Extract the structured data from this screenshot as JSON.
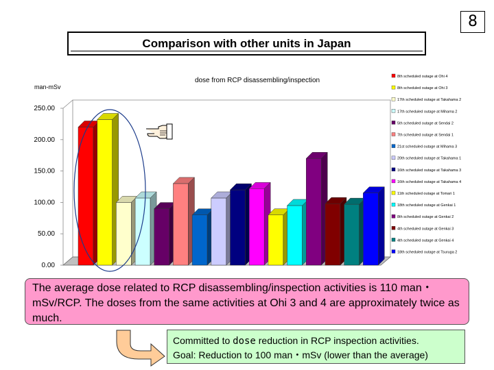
{
  "page_number": "8",
  "slide_title": "Comparison with other units in Japan",
  "callout": {
    "text": "The average dose related to RCP disassembling/inspection activities is 110 man・mSv/RCP. The doses from the same activities at Ohi 3 and 4 are approximately twice as much."
  },
  "goal_box": {
    "line1_pre": "Committed to ",
    "line1_word": "dose",
    "line1_post": " reduction in RCP inspection activities.",
    "line2": "Goal: Reduction to 100 man・mSv (lower than the average)"
  },
  "pointer_icon": "pointing-hand-icon",
  "colors": {
    "callout_bg": "#ff99cc",
    "goal_bg": "#ccffcc",
    "highlight_ellipse": "#1a3a8a"
  },
  "chart_data": {
    "type": "bar",
    "title": "dose from RCP disassembling/inspection",
    "ylabel": "man-mSv",
    "ylim": [
      0,
      250
    ],
    "yticks": [
      "0.00",
      "50.00",
      "100.00",
      "150.00",
      "200.00",
      "250.00"
    ],
    "grid": false,
    "legend_position": "right",
    "series": [
      {
        "name": "8th scheduled outage at Ohi 4",
        "value": 220,
        "color": "#ff0000"
      },
      {
        "name": "8th scheduled outage at Ohi 3",
        "value": 232,
        "color": "#ffff00"
      },
      {
        "name": "17th scheduled outage at Takahama 2",
        "value": 100,
        "color": "#ffffcc"
      },
      {
        "name": "17th scheduled outage at Mihama 2",
        "value": 107,
        "color": "#ccffff"
      },
      {
        "name": "5th scheduled outage at Sendai 2",
        "value": 90,
        "color": "#660066"
      },
      {
        "name": "7th scheduled outage at Sendai 1",
        "value": 130,
        "color": "#ff8080"
      },
      {
        "name": "21st scheduled outage at Mihama 3",
        "value": 80,
        "color": "#0066cc"
      },
      {
        "name": "20th scheduled outage at Takahama 1",
        "value": 107,
        "color": "#ccccff"
      },
      {
        "name": "16th scheduled outage at Takahama 3",
        "value": 120,
        "color": "#000080"
      },
      {
        "name": "16th scheduled outage at Takahama 4",
        "value": 122,
        "color": "#ff00ff"
      },
      {
        "name": "11th scheduled outage at Tomari 1",
        "value": 80,
        "color": "#ffff00"
      },
      {
        "name": "18th scheduled outage at Genkai 1",
        "value": 95,
        "color": "#00ffff"
      },
      {
        "name": "8th scheduled outage at Genkai 2",
        "value": 170,
        "color": "#800080"
      },
      {
        "name": "4th scheduled outage at Genkai 3",
        "value": 98,
        "color": "#800000"
      },
      {
        "name": "4th scheduled outage at Genkai 4",
        "value": 97,
        "color": "#008080"
      },
      {
        "name": "18th scheduled outage at Tsuruga 2",
        "value": 115,
        "color": "#0000ff"
      }
    ]
  }
}
